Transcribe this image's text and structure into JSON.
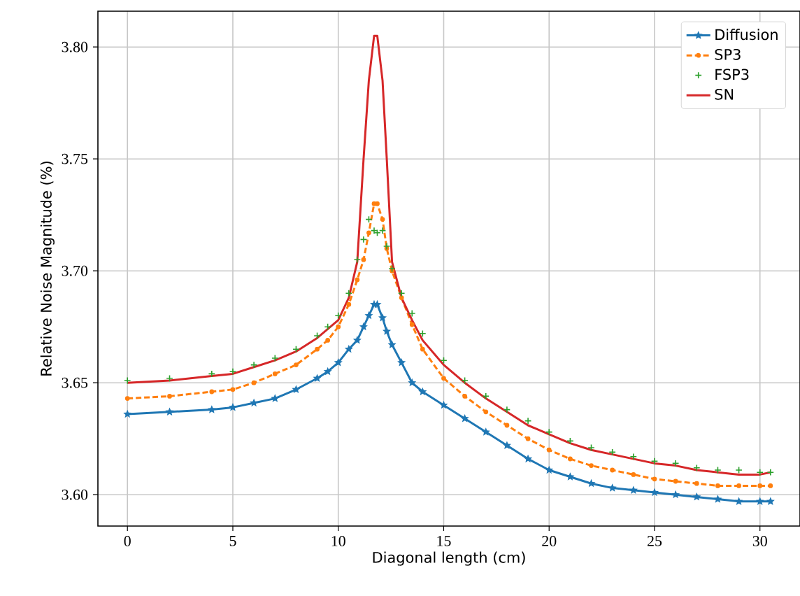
{
  "chart_data": {
    "type": "line",
    "xlabel": "Diagonal length (cm)",
    "ylabel": "Relative Noise Magnitude (%)",
    "x": [
      0,
      2,
      4,
      5,
      6,
      7,
      8,
      9,
      9.5,
      10,
      10.5,
      10.9,
      11.2,
      11.45,
      11.7,
      11.85,
      12.1,
      12.3,
      12.55,
      13,
      13.5,
      14,
      15,
      16,
      17,
      18,
      19,
      20,
      21,
      22,
      23,
      24,
      25,
      26,
      27,
      28,
      29,
      30,
      30.5
    ],
    "series": [
      {
        "name": "Diffusion",
        "color": "#1f77b4",
        "marker": "star",
        "line_style": "solid",
        "values": [
          3.636,
          3.637,
          3.638,
          3.639,
          3.641,
          3.643,
          3.647,
          3.652,
          3.655,
          3.659,
          3.665,
          3.669,
          3.675,
          3.68,
          3.685,
          3.685,
          3.679,
          3.673,
          3.667,
          3.659,
          3.65,
          3.646,
          3.64,
          3.634,
          3.628,
          3.622,
          3.616,
          3.611,
          3.608,
          3.605,
          3.603,
          3.602,
          3.601,
          3.6,
          3.599,
          3.598,
          3.597,
          3.597,
          3.597
        ]
      },
      {
        "name": "SP3",
        "color": "#ff7f0e",
        "marker": "circle",
        "line_style": "dashed",
        "values": [
          3.643,
          3.644,
          3.646,
          3.647,
          3.65,
          3.654,
          3.658,
          3.665,
          3.669,
          3.675,
          3.685,
          3.696,
          3.705,
          3.717,
          3.73,
          3.73,
          3.723,
          3.71,
          3.7,
          3.688,
          3.676,
          3.665,
          3.652,
          3.644,
          3.637,
          3.631,
          3.625,
          3.62,
          3.616,
          3.613,
          3.611,
          3.609,
          3.607,
          3.606,
          3.605,
          3.604,
          3.604,
          3.604,
          3.604
        ]
      },
      {
        "name": "FSP3",
        "type": "scatter",
        "color": "#2ca02c",
        "marker": "cross",
        "values": [
          3.651,
          3.652,
          3.654,
          3.655,
          3.658,
          3.661,
          3.665,
          3.671,
          3.675,
          3.68,
          3.69,
          3.705,
          3.714,
          3.723,
          3.718,
          3.717,
          3.718,
          3.711,
          3.701,
          3.69,
          3.681,
          3.672,
          3.66,
          3.651,
          3.644,
          3.638,
          3.633,
          3.628,
          3.624,
          3.621,
          3.619,
          3.617,
          3.615,
          3.614,
          3.612,
          3.611,
          3.611,
          3.61,
          3.61
        ]
      },
      {
        "name": "SN",
        "color": "#d62728",
        "marker": "none",
        "line_style": "solid",
        "values": [
          3.65,
          3.651,
          3.653,
          3.654,
          3.657,
          3.66,
          3.664,
          3.67,
          3.674,
          3.678,
          3.688,
          3.704,
          3.75,
          3.785,
          3.805,
          3.805,
          3.785,
          3.75,
          3.704,
          3.688,
          3.678,
          3.669,
          3.658,
          3.65,
          3.643,
          3.637,
          3.631,
          3.627,
          3.623,
          3.62,
          3.618,
          3.616,
          3.614,
          3.613,
          3.611,
          3.61,
          3.609,
          3.609,
          3.61
        ]
      }
    ],
    "xlim": [
      -1.4,
      31.9
    ],
    "ylim": [
      3.586,
      3.816
    ],
    "xticks": [
      0,
      5,
      10,
      15,
      20,
      25,
      30
    ],
    "yticks": [
      {
        "value": 3.6,
        "label": "3.60"
      },
      {
        "value": 3.65,
        "label": "3.65"
      },
      {
        "value": 3.7,
        "label": "3.70"
      },
      {
        "value": 3.75,
        "label": "3.75"
      },
      {
        "value": 3.8,
        "label": "3.80"
      }
    ],
    "grid": true,
    "legend": "top right"
  }
}
